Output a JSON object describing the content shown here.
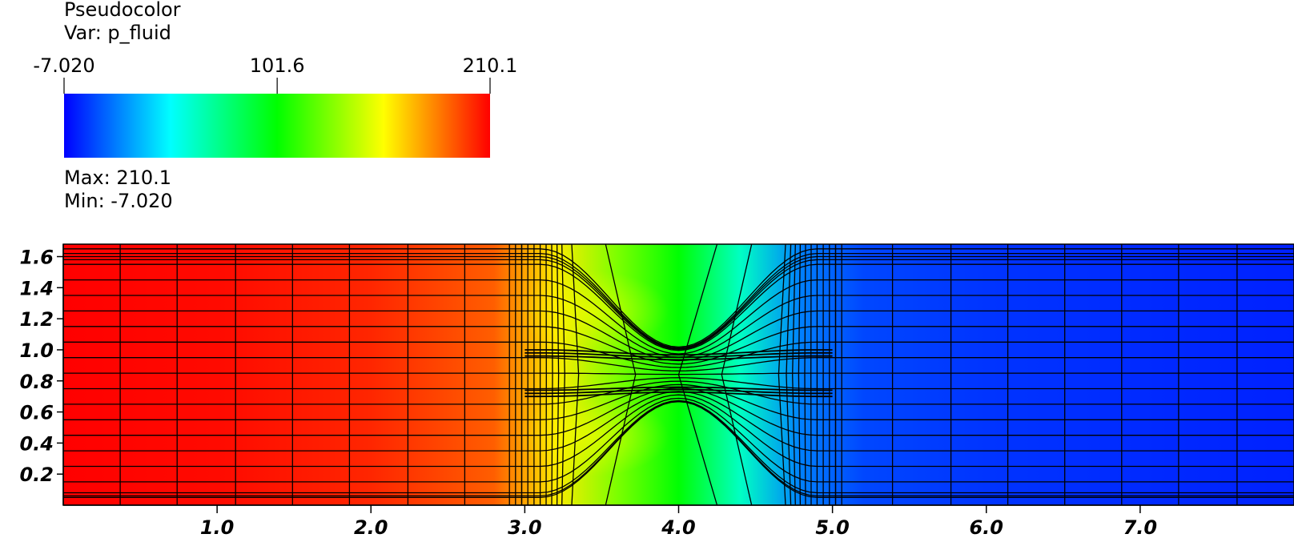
{
  "legend": {
    "title": "Pseudocolor",
    "var_label": "Var: p_fluid",
    "max_label": "Max:  210.1",
    "min_label": "Min: -7.020",
    "tick_labels": [
      "-7.020",
      "101.6",
      "210.1"
    ],
    "tick_values": [
      -7.02,
      101.6,
      210.1
    ],
    "colormap": [
      "#0000ff",
      "#00ffff",
      "#00ff00",
      "#ffff00",
      "#ff0000"
    ]
  },
  "chart_data": {
    "type": "heatmap",
    "variable": "p_fluid",
    "value_range": [
      -7.02,
      210.1
    ],
    "xlim": [
      0,
      8.0
    ],
    "ylim": [
      0,
      1.68
    ],
    "x_ticks": [
      1.0,
      2.0,
      3.0,
      4.0,
      5.0,
      6.0,
      7.0
    ],
    "x_tick_labels": [
      "1.0",
      "2.0",
      "3.0",
      "4.0",
      "5.0",
      "6.0",
      "7.0"
    ],
    "y_ticks": [
      0.2,
      0.4,
      0.6,
      0.8,
      1.0,
      1.2,
      1.4,
      1.6
    ],
    "y_tick_labels": [
      "0.2",
      "0.4",
      "0.6",
      "0.8",
      "1.0",
      "1.2",
      "1.4",
      "1.6"
    ],
    "field_profile_x": [
      0.0,
      1.0,
      2.0,
      2.8,
      3.2,
      3.6,
      4.0,
      4.4,
      4.8,
      5.2,
      6.0,
      7.0,
      8.0
    ],
    "field_profile_values": [
      210.1,
      208,
      202,
      190,
      160,
      128,
      101,
      60,
      20,
      8,
      4,
      2,
      0
    ],
    "mesh_lines_x": [
      0.37,
      0.74,
      1.12,
      1.49,
      1.86,
      2.24,
      2.61,
      2.98,
      3.35,
      3.72,
      4.0,
      4.28,
      4.65,
      5.02,
      5.39,
      5.77,
      6.14,
      6.51,
      6.88,
      7.25,
      7.63
    ]
  }
}
